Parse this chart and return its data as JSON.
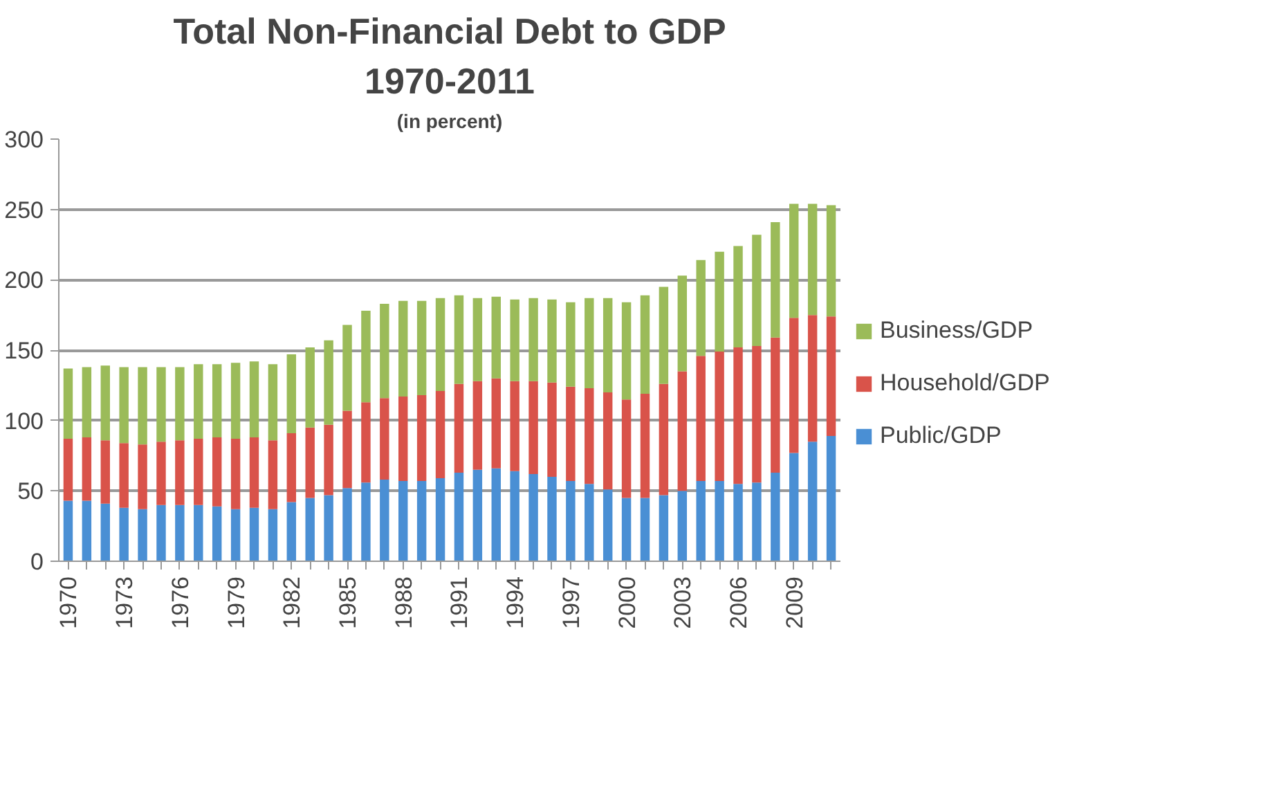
{
  "chart_data": {
    "type": "bar",
    "stacked": true,
    "title": "Total Non-Financial Debt to GDP",
    "subtitle": "1970-2011",
    "annotations": [
      "(in percent)"
    ],
    "categories": [
      "1970",
      null,
      null,
      "1973",
      null,
      null,
      "1976",
      null,
      null,
      "1979",
      null,
      null,
      "1982",
      null,
      null,
      "1985",
      null,
      null,
      "1988",
      null,
      null,
      "1991",
      null,
      null,
      "1994",
      null,
      null,
      "1997",
      null,
      null,
      "2000",
      null,
      null,
      "2003",
      null,
      null,
      "2006",
      null,
      null,
      "2009",
      null,
      null
    ],
    "series": [
      {
        "name": "Public/GDP",
        "color": "#4a8fd4",
        "values": [
          43,
          43,
          41,
          38,
          37,
          40,
          40,
          40,
          39,
          37,
          38,
          37,
          42,
          45,
          47,
          52,
          56,
          58,
          57,
          57,
          59,
          63,
          65,
          66,
          64,
          62,
          60,
          57,
          55,
          51,
          45,
          45,
          47,
          50,
          57,
          57,
          55,
          56,
          63,
          77,
          85,
          89
        ]
      },
      {
        "name": "Household/GDP",
        "color": "#d9534a",
        "values": [
          44,
          45,
          45,
          46,
          46,
          45,
          46,
          47,
          49,
          50,
          50,
          49,
          49,
          50,
          50,
          55,
          57,
          58,
          60,
          61,
          62,
          63,
          63,
          64,
          64,
          66,
          67,
          67,
          68,
          69,
          70,
          74,
          79,
          85,
          89,
          92,
          97,
          97,
          96,
          96,
          90,
          85
        ]
      },
      {
        "name": "Business/GDP",
        "color": "#9bbb59",
        "values": [
          50,
          50,
          53,
          54,
          55,
          53,
          52,
          53,
          52,
          54,
          54,
          54,
          56,
          57,
          60,
          61,
          65,
          67,
          68,
          67,
          66,
          63,
          59,
          58,
          58,
          59,
          59,
          60,
          64,
          67,
          69,
          70,
          69,
          68,
          68,
          71,
          72,
          79,
          82,
          81,
          79,
          79
        ]
      }
    ],
    "ylim": [
      0,
      300
    ],
    "yticks": [
      0,
      50,
      100,
      150,
      200,
      250,
      300
    ],
    "grid": "y",
    "legend": "right"
  }
}
